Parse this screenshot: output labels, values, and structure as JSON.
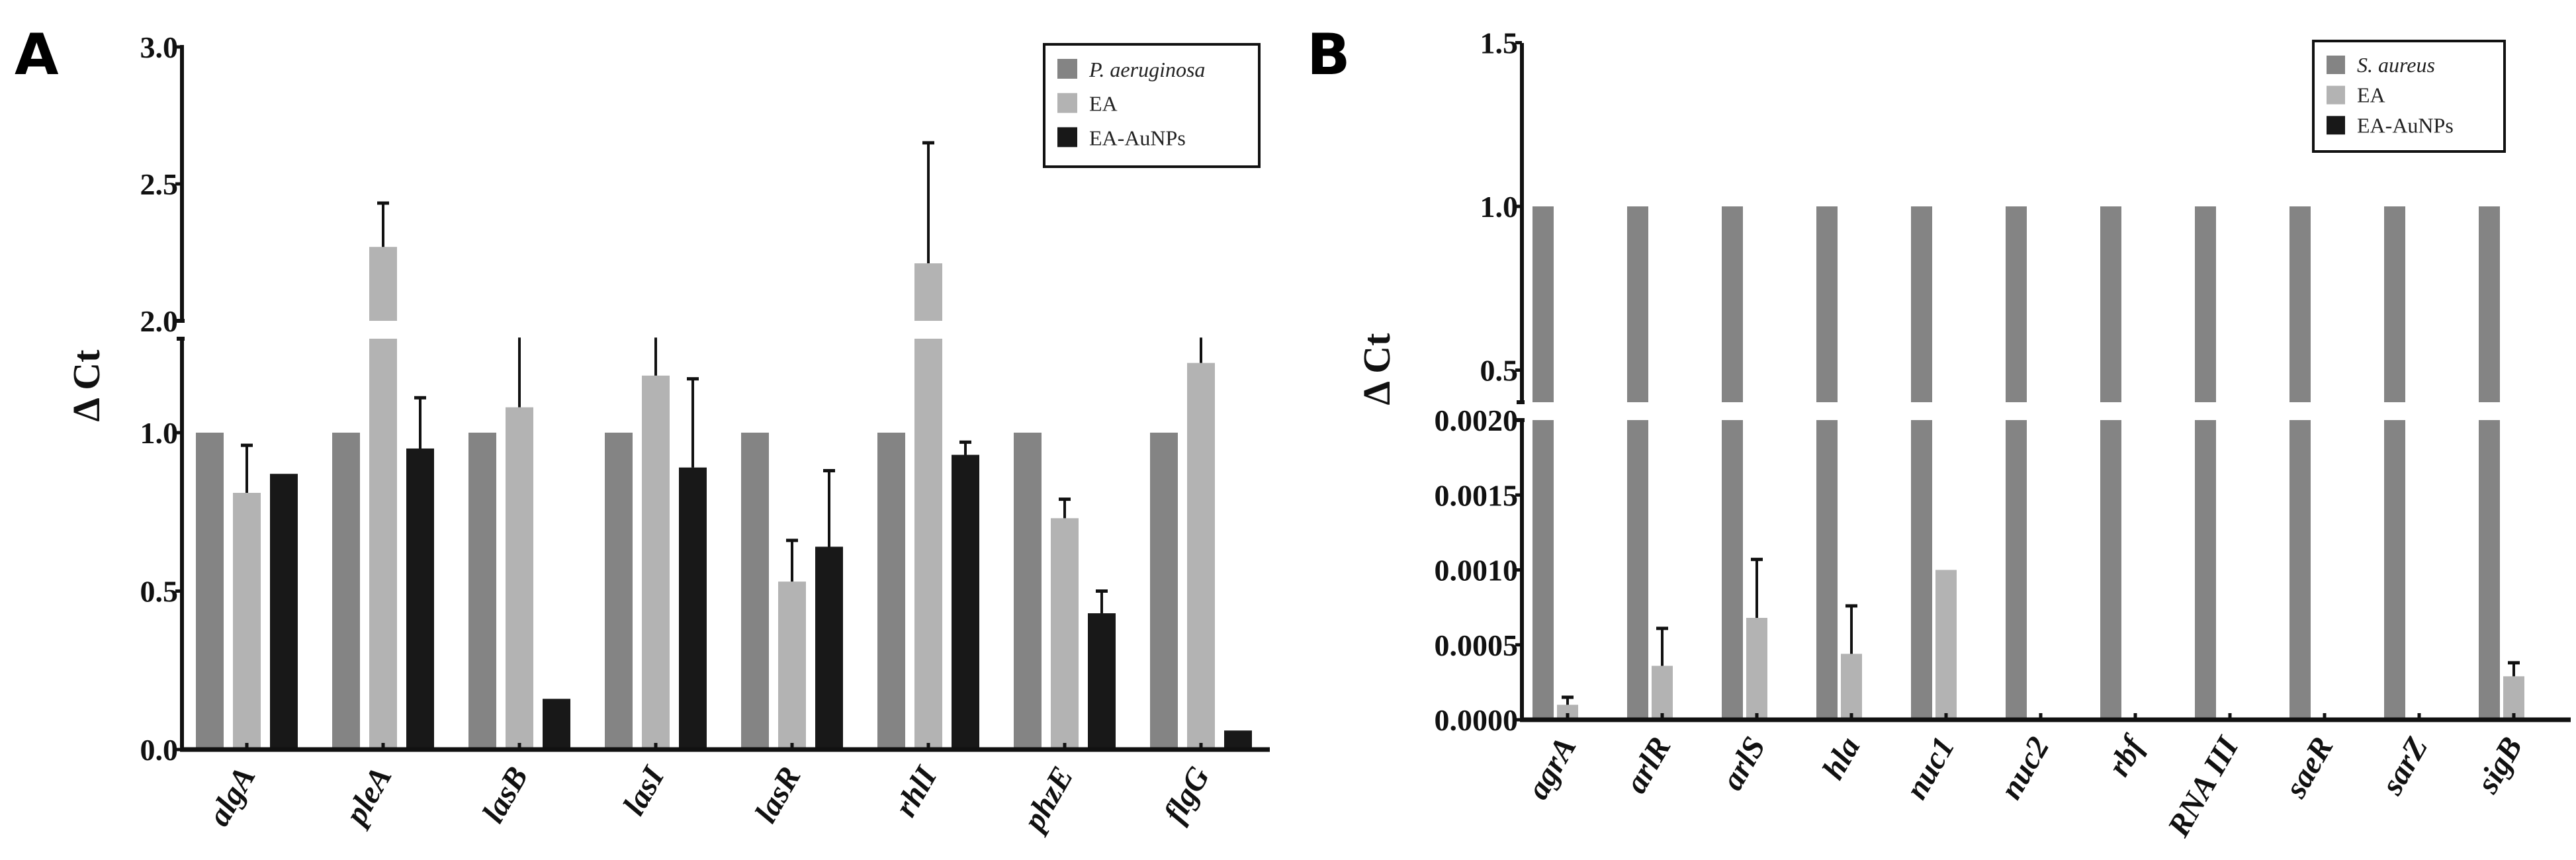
{
  "colors": {
    "control": "#848484",
    "ea": "#b3b3b3",
    "auNPs": "#181818"
  },
  "chart_data": [
    {
      "type": "bar",
      "panel": "A",
      "ylabel": "Δ Ct",
      "xlabel": "",
      "broken_axis": {
        "lower": [
          0,
          1.3
        ],
        "upper": [
          2.0,
          3.0
        ]
      },
      "yticks_lower": [
        "0.0",
        "0.5",
        "1.0"
      ],
      "yticks_upper": [
        "2.0",
        "2.5",
        "3.0"
      ],
      "legend": [
        "P. aeruginosa",
        "EA",
        "EA-AuNPs"
      ],
      "legend_position": "top-right",
      "categories": [
        "algA",
        "pleA",
        "lasB",
        "lasI",
        "lasR",
        "rhlI",
        "phzE",
        "flgG"
      ],
      "series": [
        {
          "name": "P. aeruginosa",
          "values": [
            1.0,
            1.0,
            1.0,
            1.0,
            1.0,
            1.0,
            1.0,
            1.0
          ],
          "errors": [
            null,
            null,
            null,
            null,
            null,
            null,
            null,
            null
          ]
        },
        {
          "name": "EA",
          "values": [
            0.81,
            2.27,
            1.08,
            1.18,
            0.53,
            2.21,
            0.73,
            1.22
          ],
          "errors": [
            0.96,
            2.43,
            1.3,
            1.3,
            0.66,
            2.65,
            0.79,
            1.3
          ]
        },
        {
          "name": "EA-AuNPs",
          "values": [
            0.87,
            0.95,
            0.16,
            0.89,
            0.64,
            0.93,
            0.43,
            0.06
          ],
          "errors": [
            null,
            1.11,
            null,
            1.17,
            0.88,
            0.97,
            0.5,
            null
          ]
        }
      ]
    },
    {
      "type": "bar",
      "panel": "B",
      "ylabel": "Δ Ct",
      "xlabel": "",
      "broken_axis": {
        "lower": [
          0,
          0.002
        ],
        "upper": [
          0.4,
          1.5
        ]
      },
      "yticks_lower": [
        "0.0000",
        "0.0005",
        "0.0010",
        "0.0015",
        "0.0020"
      ],
      "yticks_upper": [
        "0.5",
        "1.0",
        "1.5"
      ],
      "legend": [
        "S. aureus",
        "EA",
        "EA-AuNPs"
      ],
      "legend_position": "top-right",
      "categories": [
        "agrA",
        "arlR",
        "arlS",
        "hla",
        "nuc1",
        "nuc2",
        "rbf",
        "RNA III",
        "saeR",
        "sarZ",
        "sigB"
      ],
      "series": [
        {
          "name": "S. aureus",
          "values": [
            1.0,
            1.0,
            1.0,
            1.0,
            1.0,
            1.0,
            1.0,
            1.0,
            1.0,
            1.0,
            1.0
          ],
          "errors": [
            null,
            null,
            null,
            null,
            null,
            null,
            null,
            null,
            null,
            null,
            null
          ]
        },
        {
          "name": "EA",
          "values": [
            0.0001,
            0.00036,
            0.00068,
            0.00044,
            0.001,
            0,
            0,
            0,
            0,
            0,
            0.00029
          ],
          "errors": [
            0.00015,
            0.00061,
            0.00107,
            0.00076,
            null,
            null,
            null,
            null,
            null,
            null,
            0.00038
          ]
        },
        {
          "name": "EA-AuNPs",
          "values": [
            0,
            0,
            0,
            0,
            0,
            0,
            0,
            0,
            0,
            0,
            0
          ],
          "errors": [
            null,
            null,
            null,
            null,
            null,
            null,
            null,
            null,
            null,
            null,
            null
          ]
        }
      ]
    }
  ]
}
